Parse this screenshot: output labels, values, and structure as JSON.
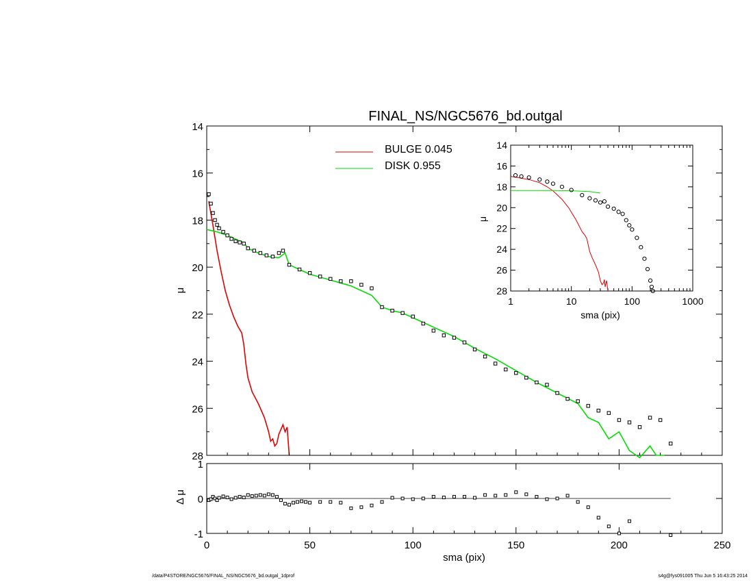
{
  "chart_data": [
    {
      "type": "line",
      "title": "FINAL_NS/NGC5676_bd.outgal",
      "xlabel": "",
      "ylabel": "μ",
      "xlim": [
        0,
        250
      ],
      "ylim": [
        28,
        14
      ],
      "y_inverted": true,
      "x_ticks": [
        0,
        50,
        100,
        150,
        200,
        250
      ],
      "y_ticks": [
        14,
        16,
        18,
        20,
        22,
        24,
        26,
        28
      ],
      "legend": {
        "placement": "top-center",
        "entries": [
          {
            "label": "BULGE",
            "value": "0.045",
            "color": "#e00000"
          },
          {
            "label": "DISK",
            "value": "0.955",
            "color": "#00dd00"
          }
        ]
      },
      "series": [
        {
          "name": "BULGE",
          "kind": "line",
          "color": "#e00000",
          "x": [
            1,
            3,
            5,
            7,
            9,
            11,
            13,
            15,
            17,
            18,
            19,
            20,
            22,
            25,
            28,
            30,
            31,
            32,
            33,
            34,
            35,
            36,
            37,
            38,
            39,
            40
          ],
          "y": [
            17.2,
            18.2,
            19.3,
            20.2,
            21.0,
            21.6,
            22.1,
            22.5,
            22.8,
            23.3,
            24.1,
            24.7,
            25.3,
            25.8,
            26.4,
            27.0,
            27.4,
            27.3,
            27.6,
            27.5,
            27.1,
            26.9,
            26.7,
            27.0,
            26.8,
            28.0
          ]
        },
        {
          "name": "DISK",
          "kind": "line",
          "color": "#00dd00",
          "x": [
            0,
            5,
            10,
            15,
            18,
            20,
            25,
            30,
            35,
            38,
            40,
            45,
            50,
            60,
            70,
            80,
            85,
            90,
            95,
            100,
            110,
            120,
            130,
            140,
            150,
            160,
            170,
            180,
            185,
            190,
            195,
            200,
            205,
            210,
            215,
            218,
            222
          ],
          "y": [
            18.4,
            18.5,
            18.65,
            18.85,
            18.95,
            19.2,
            19.4,
            19.55,
            19.6,
            19.4,
            19.9,
            20.1,
            20.3,
            20.55,
            20.8,
            21.2,
            21.7,
            21.85,
            21.95,
            22.15,
            22.55,
            22.95,
            23.45,
            23.9,
            24.4,
            24.9,
            25.35,
            25.8,
            26.4,
            26.6,
            27.3,
            27.0,
            27.8,
            28.1,
            27.6,
            28.0,
            28.0
          ]
        },
        {
          "name": "",
          "kind": "points",
          "color": "#000000",
          "x": [
            1,
            2,
            3,
            4,
            5,
            6,
            8,
            10,
            12,
            14,
            16,
            18,
            20,
            23,
            26,
            29,
            32,
            35,
            37,
            40,
            45,
            50,
            55,
            60,
            65,
            70,
            75,
            80,
            85,
            90,
            95,
            100,
            105,
            110,
            115,
            120,
            125,
            130,
            135,
            140,
            145,
            150,
            155,
            160,
            165,
            170,
            175,
            180,
            185,
            190,
            195,
            200,
            205,
            210,
            215,
            220,
            225
          ],
          "y": [
            16.9,
            17.3,
            17.7,
            18.0,
            18.2,
            18.35,
            18.5,
            18.65,
            18.8,
            18.9,
            18.95,
            19.0,
            19.2,
            19.3,
            19.4,
            19.5,
            19.55,
            19.4,
            19.3,
            19.9,
            20.1,
            20.25,
            20.4,
            20.5,
            20.6,
            20.6,
            20.75,
            20.9,
            21.7,
            21.85,
            21.95,
            22.1,
            22.4,
            22.7,
            22.9,
            23.0,
            23.2,
            23.5,
            23.8,
            24.1,
            24.35,
            24.5,
            24.7,
            24.9,
            25.0,
            25.35,
            25.6,
            25.7,
            25.9,
            26.1,
            26.2,
            26.5,
            26.6,
            26.8,
            26.4,
            26.5,
            27.5
          ]
        }
      ]
    },
    {
      "type": "scatter",
      "title": "",
      "xlabel": "sma (pix)",
      "ylabel": "Δ μ",
      "xlim": [
        0,
        250
      ],
      "ylim": [
        -1,
        1
      ],
      "x_ticks": [
        0,
        50,
        100,
        150,
        200,
        250
      ],
      "y_ticks": [
        -1,
        0,
        1
      ],
      "reference_line": {
        "y": 0,
        "x": [
          0,
          225
        ]
      },
      "series": [
        {
          "name": "",
          "kind": "points",
          "x": [
            1,
            2,
            3,
            4,
            5,
            6,
            8,
            10,
            12,
            14,
            16,
            18,
            20,
            22,
            24,
            26,
            28,
            30,
            32,
            34,
            36,
            38,
            40,
            42,
            44,
            46,
            48,
            50,
            55,
            60,
            65,
            70,
            75,
            80,
            85,
            90,
            95,
            100,
            105,
            110,
            115,
            120,
            125,
            130,
            135,
            140,
            145,
            150,
            155,
            160,
            165,
            170,
            175,
            180,
            185,
            190,
            195,
            200,
            205,
            225
          ],
          "y": [
            -0.05,
            -0.02,
            0.05,
            0.0,
            -0.05,
            0.02,
            0.06,
            0.03,
            -0.02,
            0.02,
            0.05,
            0.03,
            0.1,
            0.07,
            0.08,
            0.1,
            0.08,
            0.12,
            0.1,
            0.05,
            -0.05,
            -0.15,
            -0.18,
            -0.12,
            -0.1,
            -0.08,
            -0.1,
            -0.12,
            -0.1,
            -0.1,
            -0.12,
            -0.28,
            -0.25,
            -0.2,
            -0.1,
            0.02,
            0.0,
            -0.02,
            0.0,
            0.05,
            0.03,
            0.05,
            0.05,
            0.02,
            0.1,
            0.08,
            0.1,
            0.18,
            0.12,
            0.05,
            -0.02,
            0.0,
            0.08,
            -0.1,
            -0.25,
            -0.55,
            -0.8,
            -1.0,
            -0.65,
            -1.05
          ]
        }
      ]
    },
    {
      "type": "line",
      "title": "",
      "xlabel": "sma (pix)",
      "ylabel": "μ",
      "x_scale": "log",
      "xlim": [
        1,
        1000
      ],
      "ylim": [
        28,
        14
      ],
      "y_inverted": true,
      "x_ticks": [
        1,
        10,
        100,
        1000
      ],
      "y_ticks": [
        14,
        16,
        18,
        20,
        22,
        24,
        26,
        28
      ],
      "series": [
        {
          "name": "BULGE",
          "kind": "line",
          "color": "#e00000",
          "x": [
            1,
            2,
            3,
            4,
            5,
            7,
            9,
            12,
            15,
            17,
            18,
            19,
            20,
            22,
            25,
            28,
            30,
            32,
            34,
            35,
            36,
            37,
            38,
            39,
            40
          ],
          "y": [
            17.0,
            17.3,
            17.6,
            18.0,
            18.4,
            19.2,
            20.0,
            21.2,
            22.3,
            22.7,
            23.0,
            23.6,
            24.2,
            24.8,
            25.5,
            26.2,
            27.0,
            27.4,
            27.2,
            26.9,
            27.6,
            27.3,
            27.0,
            27.5,
            28.0
          ]
        },
        {
          "name": "DISK",
          "kind": "line",
          "color": "#00dd00",
          "x": [
            1,
            3,
            5,
            10,
            20,
            30
          ],
          "y": [
            18.35,
            18.35,
            18.36,
            18.38,
            18.45,
            18.6
          ]
        },
        {
          "name": "",
          "kind": "points",
          "color": "#000000",
          "x": [
            1.2,
            1.5,
            2,
            3,
            4,
            5,
            7,
            10,
            15,
            20,
            25,
            30,
            35,
            40,
            50,
            60,
            70,
            80,
            90,
            100,
            120,
            140,
            160,
            180,
            200,
            210,
            220
          ],
          "y": [
            16.9,
            17.0,
            17.1,
            17.3,
            17.5,
            17.7,
            18.0,
            18.3,
            18.8,
            19.1,
            19.3,
            19.5,
            19.4,
            19.9,
            20.1,
            20.4,
            20.6,
            21.2,
            21.7,
            22.1,
            22.9,
            23.8,
            24.9,
            25.9,
            27.0,
            27.6,
            28.0
          ]
        }
      ]
    }
  ],
  "footer": {
    "left": "/data/P4STORE/NGC5676/FINAL_NS/NGC5676_bd.outgal_1dprof",
    "right": "s4g@fys091005  Thu Jun  5 16:43:25 2014"
  }
}
